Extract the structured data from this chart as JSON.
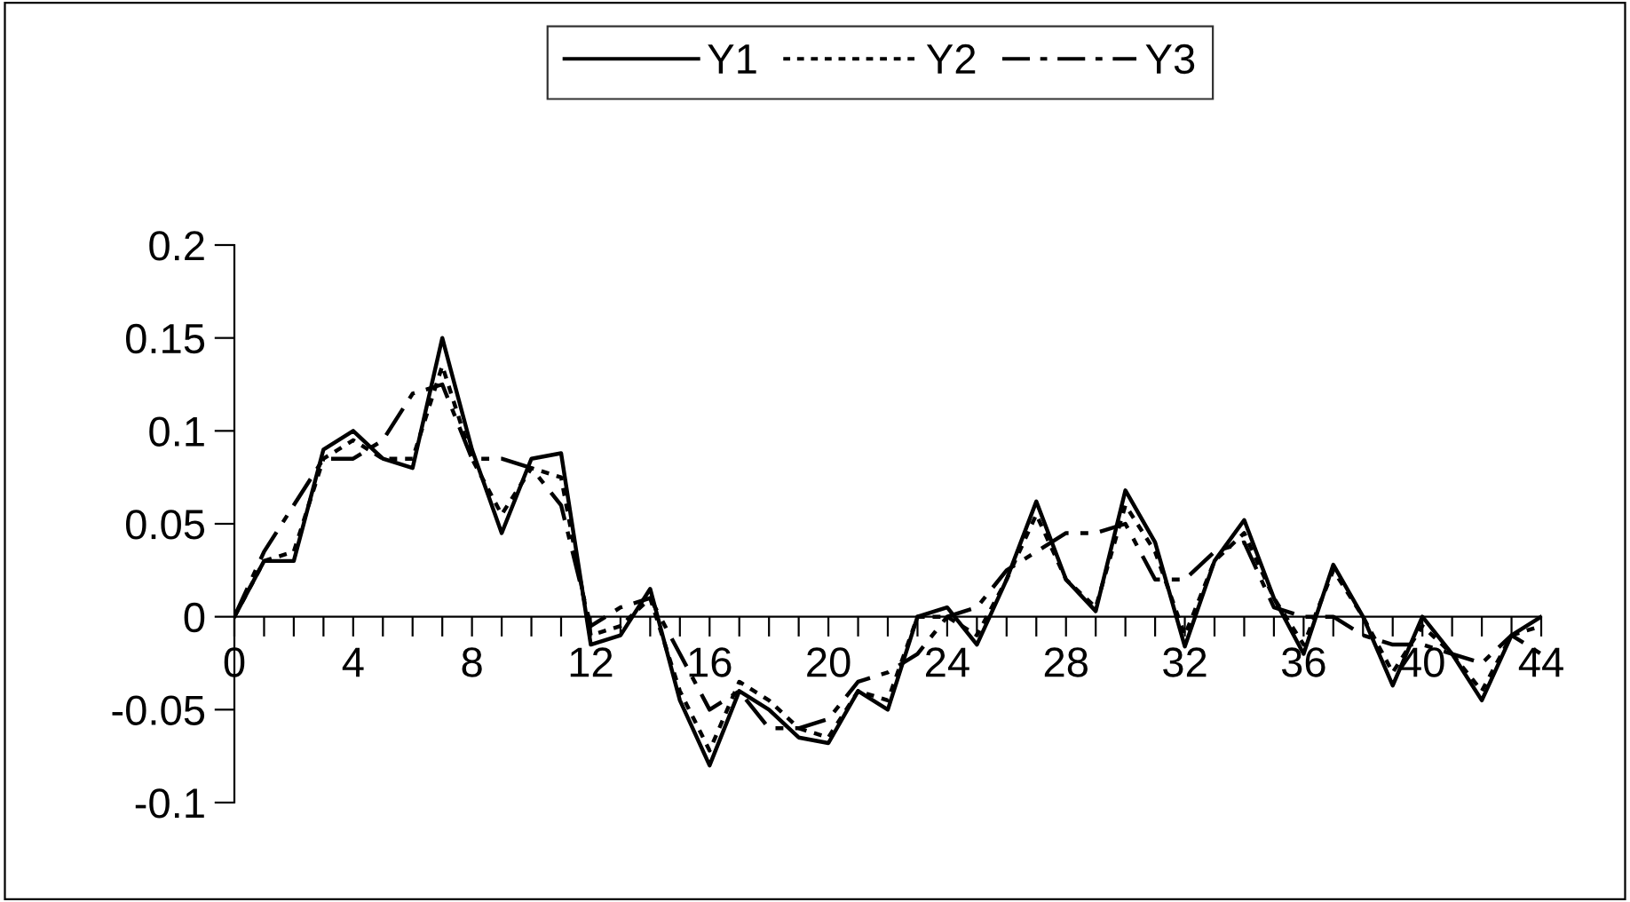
{
  "chart_data": {
    "type": "line",
    "x": [
      0,
      1,
      2,
      3,
      4,
      5,
      6,
      7,
      8,
      9,
      10,
      11,
      12,
      13,
      14,
      15,
      16,
      17,
      18,
      19,
      20,
      21,
      22,
      23,
      24,
      25,
      26,
      27,
      28,
      29,
      30,
      31,
      32,
      33,
      34,
      35,
      36,
      37,
      38,
      39,
      40,
      41,
      42,
      43,
      44
    ],
    "series": [
      {
        "name": "Y1",
        "color": "#000000",
        "line_style": "solid",
        "values": [
          0,
          0.03,
          0.03,
          0.09,
          0.1,
          0.085,
          0.08,
          0.15,
          0.09,
          0.045,
          0.085,
          0.088,
          -0.015,
          -0.01,
          0.015,
          -0.045,
          -0.08,
          -0.04,
          -0.05,
          -0.065,
          -0.068,
          -0.04,
          -0.05,
          0.0,
          0.005,
          -0.015,
          0.02,
          0.062,
          0.02,
          0.003,
          0.068,
          0.04,
          -0.016,
          0.03,
          0.052,
          0.01,
          -0.02,
          0.028,
          0.0,
          -0.037,
          0.0,
          -0.02,
          -0.045,
          -0.01,
          0.0
        ]
      },
      {
        "name": "Y2",
        "color": "#000000",
        "line_style": "dotted",
        "values": [
          0,
          0.03,
          0.035,
          0.085,
          0.095,
          0.085,
          0.085,
          0.135,
          0.085,
          0.055,
          0.08,
          0.075,
          -0.01,
          -0.005,
          0.01,
          -0.04,
          -0.072,
          -0.035,
          -0.045,
          -0.06,
          -0.065,
          -0.04,
          -0.045,
          0.0,
          0.0,
          -0.01,
          0.02,
          0.055,
          0.02,
          0.005,
          0.06,
          0.035,
          -0.01,
          0.03,
          0.045,
          0.01,
          -0.015,
          0.025,
          0.0,
          -0.03,
          -0.005,
          -0.02,
          -0.04,
          -0.01,
          -0.005
        ]
      },
      {
        "name": "Y3",
        "color": "#000000",
        "line_style": "dashdot",
        "values": [
          0,
          0.035,
          0.06,
          0.085,
          0.085,
          0.095,
          0.12,
          0.125,
          0.085,
          0.085,
          0.08,
          0.06,
          -0.005,
          0.005,
          0.01,
          -0.02,
          -0.05,
          -0.04,
          -0.06,
          -0.06,
          -0.055,
          -0.035,
          -0.03,
          -0.02,
          0.0,
          0.005,
          0.025,
          0.035,
          0.045,
          0.045,
          0.05,
          0.02,
          0.02,
          0.035,
          0.04,
          0.005,
          0.0,
          0.0,
          -0.01,
          -0.015,
          -0.015,
          -0.02,
          -0.025,
          -0.01,
          -0.02
        ]
      }
    ],
    "xlim": [
      0,
      44
    ],
    "xticks": [
      0,
      {
        "value": 1,
        "label": null
      },
      {
        "value": 2,
        "label": null
      },
      {
        "value": 3,
        "label": null
      },
      4,
      {
        "value": 5,
        "label": null
      },
      {
        "value": 6,
        "label": null
      },
      {
        "value": 7,
        "label": null
      },
      8,
      {
        "value": 9,
        "label": null
      },
      {
        "value": 10,
        "label": null
      },
      {
        "value": 11,
        "label": null
      },
      12,
      {
        "value": 13,
        "label": null
      },
      {
        "value": 14,
        "label": null
      },
      {
        "value": 15,
        "label": null
      },
      16,
      {
        "value": 17,
        "label": null
      },
      {
        "value": 18,
        "label": null
      },
      {
        "value": 19,
        "label": null
      },
      20,
      {
        "value": 21,
        "label": null
      },
      {
        "value": 22,
        "label": null
      },
      {
        "value": 23,
        "label": null
      },
      24,
      {
        "value": 25,
        "label": null
      },
      {
        "value": 26,
        "label": null
      },
      {
        "value": 27,
        "label": null
      },
      28,
      {
        "value": 29,
        "label": null
      },
      {
        "value": 30,
        "label": null
      },
      {
        "value": 31,
        "label": null
      },
      32,
      {
        "value": 33,
        "label": null
      },
      {
        "value": 34,
        "label": null
      },
      {
        "value": 35,
        "label": null
      },
      36,
      {
        "value": 37,
        "label": null
      },
      {
        "value": 38,
        "label": null
      },
      {
        "value": 39,
        "label": null
      },
      40,
      {
        "value": 41,
        "label": null
      },
      {
        "value": 42,
        "label": null
      },
      {
        "value": 43,
        "label": null
      },
      44
    ],
    "ylim": [
      -0.1,
      0.2
    ],
    "yticks": [
      -0.1,
      -0.05,
      0,
      0.05,
      0.1,
      0.15,
      0.2
    ],
    "grid": false,
    "legend": "top",
    "marker": "none"
  }
}
